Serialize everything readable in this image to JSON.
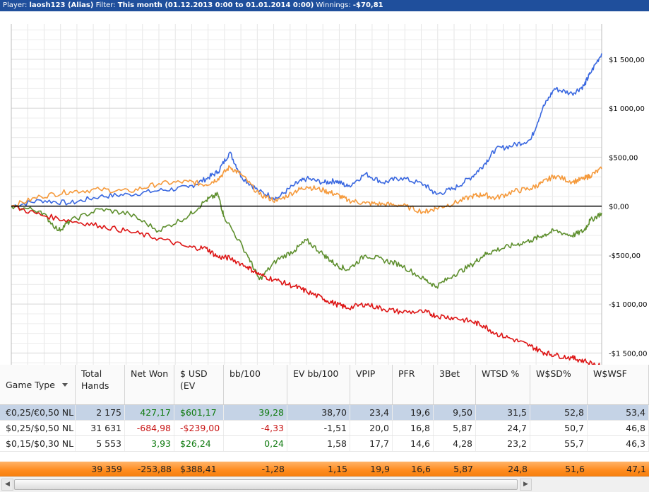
{
  "titlebar": {
    "player_label": "Player:",
    "player_name": "laosh123 (Alias)",
    "filter_label": "Filter:",
    "filter_value": "This month (01.12.2013 0:00 to 01.01.2014 0:00)",
    "winnings_label": "Winnings:",
    "winnings_value": "-$70,81"
  },
  "chart_data": {
    "type": "line",
    "yticks": [
      "$1 500,00",
      "$1 000,00",
      "$500,00",
      "$0,00",
      "-$500,00",
      "-$1 000,00",
      "-$1 500,00"
    ],
    "ytick_values": [
      1500,
      1000,
      500,
      0,
      -500,
      -1000,
      -1500
    ],
    "ylim": [
      -1620,
      1860
    ],
    "xlim": [
      0,
      100
    ],
    "grid": true,
    "zero_line": true,
    "series": [
      {
        "color": "#3a68e0",
        "points": [
          [
            0,
            0
          ],
          [
            5,
            60
          ],
          [
            10,
            30
          ],
          [
            15,
            100
          ],
          [
            20,
            120
          ],
          [
            25,
            160
          ],
          [
            30,
            190
          ],
          [
            33,
            280
          ],
          [
            35,
            350
          ],
          [
            37,
            550
          ],
          [
            39,
            300
          ],
          [
            42,
            150
          ],
          [
            45,
            80
          ],
          [
            48,
            220
          ],
          [
            50,
            280
          ],
          [
            53,
            240
          ],
          [
            55,
            260
          ],
          [
            57,
            200
          ],
          [
            60,
            330
          ],
          [
            63,
            240
          ],
          [
            66,
            290
          ],
          [
            70,
            220
          ],
          [
            72,
            120
          ],
          [
            75,
            180
          ],
          [
            78,
            300
          ],
          [
            80,
            420
          ],
          [
            82,
            580
          ],
          [
            85,
            620
          ],
          [
            88,
            680
          ],
          [
            90,
            1000
          ],
          [
            92,
            1200
          ],
          [
            95,
            1150
          ],
          [
            97,
            1230
          ],
          [
            98,
            1350
          ],
          [
            100,
            1560
          ]
        ]
      },
      {
        "color": "#f59a3c",
        "points": [
          [
            0,
            0
          ],
          [
            5,
            100
          ],
          [
            10,
            150
          ],
          [
            15,
            170
          ],
          [
            20,
            150
          ],
          [
            25,
            230
          ],
          [
            30,
            250
          ],
          [
            33,
            220
          ],
          [
            35,
            280
          ],
          [
            37,
            400
          ],
          [
            39,
            320
          ],
          [
            42,
            120
          ],
          [
            45,
            50
          ],
          [
            48,
            150
          ],
          [
            50,
            200
          ],
          [
            53,
            160
          ],
          [
            55,
            120
          ],
          [
            57,
            60
          ],
          [
            60,
            30
          ],
          [
            63,
            20
          ],
          [
            66,
            10
          ],
          [
            70,
            -60
          ],
          [
            72,
            -20
          ],
          [
            75,
            30
          ],
          [
            78,
            100
          ],
          [
            80,
            120
          ],
          [
            82,
            80
          ],
          [
            85,
            150
          ],
          [
            88,
            180
          ],
          [
            90,
            240
          ],
          [
            92,
            310
          ],
          [
            95,
            250
          ],
          [
            97,
            280
          ],
          [
            98,
            310
          ],
          [
            100,
            380
          ]
        ]
      },
      {
        "color": "#5e8f2e",
        "points": [
          [
            0,
            0
          ],
          [
            5,
            -50
          ],
          [
            8,
            -250
          ],
          [
            10,
            -150
          ],
          [
            15,
            -30
          ],
          [
            20,
            -80
          ],
          [
            25,
            -250
          ],
          [
            30,
            -100
          ],
          [
            33,
            60
          ],
          [
            35,
            120
          ],
          [
            36,
            -100
          ],
          [
            40,
            -500
          ],
          [
            42,
            -750
          ],
          [
            45,
            -550
          ],
          [
            48,
            -450
          ],
          [
            50,
            -350
          ],
          [
            53,
            -500
          ],
          [
            55,
            -600
          ],
          [
            57,
            -650
          ],
          [
            60,
            -500
          ],
          [
            63,
            -550
          ],
          [
            66,
            -600
          ],
          [
            70,
            -750
          ],
          [
            72,
            -820
          ],
          [
            75,
            -700
          ],
          [
            78,
            -600
          ],
          [
            80,
            -500
          ],
          [
            82,
            -450
          ],
          [
            85,
            -400
          ],
          [
            88,
            -350
          ],
          [
            90,
            -300
          ],
          [
            92,
            -250
          ],
          [
            95,
            -300
          ],
          [
            97,
            -250
          ],
          [
            98,
            -150
          ],
          [
            100,
            -70
          ]
        ]
      },
      {
        "color": "#dd1515",
        "points": [
          [
            0,
            0
          ],
          [
            5,
            -90
          ],
          [
            10,
            -150
          ],
          [
            15,
            -200
          ],
          [
            20,
            -260
          ],
          [
            25,
            -330
          ],
          [
            30,
            -420
          ],
          [
            33,
            -430
          ],
          [
            35,
            -520
          ],
          [
            37,
            -530
          ],
          [
            40,
            -620
          ],
          [
            42,
            -700
          ],
          [
            45,
            -760
          ],
          [
            48,
            -820
          ],
          [
            50,
            -870
          ],
          [
            53,
            -950
          ],
          [
            55,
            -1000
          ],
          [
            57,
            -1040
          ],
          [
            60,
            -1000
          ],
          [
            63,
            -1050
          ],
          [
            66,
            -1080
          ],
          [
            70,
            -1080
          ],
          [
            72,
            -1120
          ],
          [
            75,
            -1140
          ],
          [
            78,
            -1180
          ],
          [
            80,
            -1220
          ],
          [
            82,
            -1300
          ],
          [
            85,
            -1360
          ],
          [
            88,
            -1430
          ],
          [
            90,
            -1490
          ],
          [
            92,
            -1520
          ],
          [
            95,
            -1550
          ],
          [
            97,
            -1580
          ],
          [
            100,
            -1640
          ]
        ]
      }
    ]
  },
  "table": {
    "columns": [
      {
        "key": "game_type",
        "label": "Game Type",
        "align": "l"
      },
      {
        "key": "total_hands",
        "label": "Total Hands",
        "align": "r"
      },
      {
        "key": "net_won",
        "label": "Net Won",
        "align": "r"
      },
      {
        "key": "usd_ev",
        "label": "$ USD (EV",
        "align": "l"
      },
      {
        "key": "bb100",
        "label": "bb/100",
        "align": "r"
      },
      {
        "key": "ev_bb100",
        "label": "EV bb/100",
        "align": "r"
      },
      {
        "key": "vpip",
        "label": "VPIP",
        "align": "r"
      },
      {
        "key": "pfr",
        "label": "PFR",
        "align": "r"
      },
      {
        "key": "threebet",
        "label": "3Bet",
        "align": "r"
      },
      {
        "key": "wtsd",
        "label": "WTSD %",
        "align": "r"
      },
      {
        "key": "wsd",
        "label": "W$SD%",
        "align": "r"
      },
      {
        "key": "wwsf",
        "label": "W$WSF",
        "align": "r"
      }
    ],
    "rows": [
      {
        "game_type": "€0,25/€0,50 NL",
        "total_hands": "2 175",
        "net_won": "427,17",
        "usd_ev": "$601,17",
        "bb100": "39,28",
        "ev_bb100": "38,70",
        "vpip": "23,4",
        "pfr": "19,6",
        "threebet": "9,50",
        "wtsd": "31,5",
        "wsd": "52,8",
        "wwsf": "53,4",
        "sign": [
          "pos",
          "pos",
          "pos"
        ]
      },
      {
        "game_type": "$0,25/$0,50 NL",
        "total_hands": "31 631",
        "net_won": "-684,98",
        "usd_ev": "-$239,00",
        "bb100": "-4,33",
        "ev_bb100": "-1,51",
        "vpip": "20,0",
        "pfr": "16,8",
        "threebet": "5,87",
        "wtsd": "24,7",
        "wsd": "50,7",
        "wwsf": "46,8",
        "sign": [
          "neg",
          "neg",
          "neg"
        ]
      },
      {
        "game_type": "$0,15/$0,30 NL",
        "total_hands": "5 553",
        "net_won": "3,93",
        "usd_ev": "$26,24",
        "bb100": "0,24",
        "ev_bb100": "1,58",
        "vpip": "17,7",
        "pfr": "14,6",
        "threebet": "4,28",
        "wtsd": "23,2",
        "wsd": "55,7",
        "wwsf": "46,3",
        "sign": [
          "pos",
          "pos",
          "pos"
        ]
      }
    ],
    "totals": {
      "game_type": "",
      "total_hands": "39 359",
      "net_won": "-253,88",
      "usd_ev": "$388,41",
      "bb100": "-1,28",
      "ev_bb100": "1,15",
      "vpip": "19,9",
      "pfr": "16,6",
      "threebet": "5,87",
      "wtsd": "24,8",
      "wsd": "51,6",
      "wwsf": "47,1"
    }
  },
  "scrollbar": {
    "left_icon": "◀",
    "right_icon": "▶"
  }
}
